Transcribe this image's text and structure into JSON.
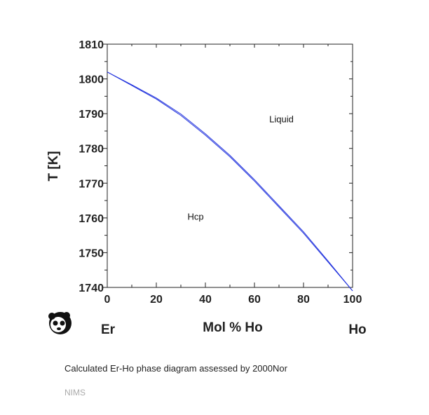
{
  "chart_data": {
    "type": "line",
    "title": "",
    "xlabel": "Mol % Ho",
    "ylabel": "T [K]",
    "xlim": [
      0,
      100
    ],
    "ylim": [
      1740,
      1810
    ],
    "x_ticks": [
      0,
      20,
      40,
      60,
      80,
      100
    ],
    "y_ticks": [
      1740,
      1750,
      1760,
      1770,
      1780,
      1790,
      1800,
      1810
    ],
    "left_end_label": "Er",
    "right_end_label": "Ho",
    "grid": false,
    "series": [
      {
        "color": "#2233dd",
        "points": [
          [
            0,
            1802
          ],
          [
            10,
            1798.1
          ],
          [
            20,
            1794.2
          ],
          [
            30,
            1789.5
          ],
          [
            40,
            1783.8
          ],
          [
            50,
            1777.6
          ],
          [
            60,
            1770.6
          ],
          [
            70,
            1763.1
          ],
          [
            80,
            1755.6
          ],
          [
            90,
            1747.3
          ],
          [
            100,
            1739.0
          ]
        ]
      },
      {
        "color": "#2233dd",
        "points": [
          [
            0,
            1802
          ],
          [
            10,
            1798.3
          ],
          [
            20,
            1794.5
          ],
          [
            30,
            1789.9
          ],
          [
            40,
            1784.2
          ],
          [
            50,
            1778.0
          ],
          [
            60,
            1771.0
          ],
          [
            70,
            1763.5
          ],
          [
            80,
            1756.0
          ],
          [
            90,
            1747.6
          ],
          [
            100,
            1739.0
          ]
        ]
      }
    ],
    "annotations": [
      {
        "text": "Liquid",
        "x": 71,
        "y": 1787.5
      },
      {
        "text": "Hcp",
        "x": 36,
        "y": 1759.5
      }
    ]
  },
  "caption": "Calculated Er-Ho phase diagram assessed by 2000Nor",
  "source": "NIMS",
  "logo_name": "panda-logo-icon"
}
